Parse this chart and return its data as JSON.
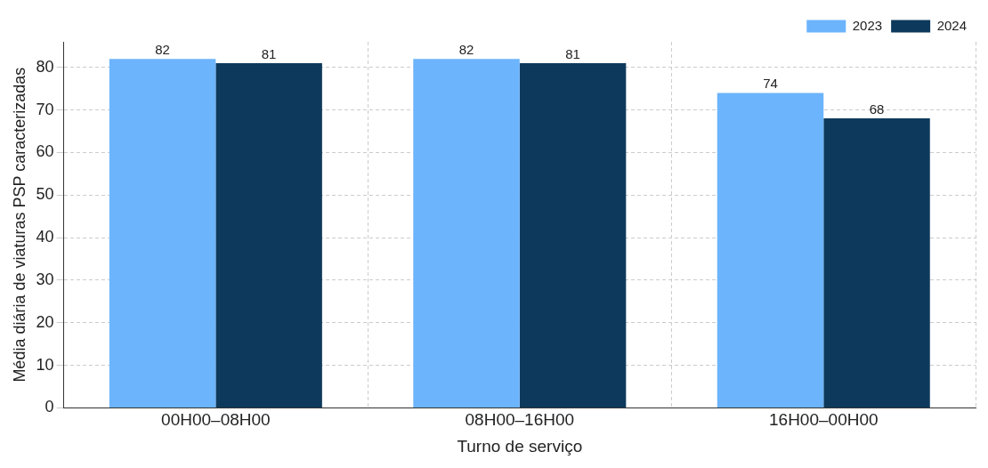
{
  "chart_data": {
    "type": "bar",
    "xlabel": "Turno de serviço",
    "ylabel": "Média diária de viaturas PSP caracterizadas",
    "categories": [
      "00H00–08H00",
      "08H00–16H00",
      "16H00–00H00"
    ],
    "series": [
      {
        "name": "2023",
        "color": "#6cb4fc",
        "values": [
          82,
          82,
          74
        ]
      },
      {
        "name": "2024",
        "color": "#0d3a5c",
        "values": [
          81,
          81,
          68
        ]
      }
    ],
    "ylim": [
      0,
      86
    ],
    "yticks": [
      0,
      10,
      20,
      30,
      40,
      50,
      60,
      70,
      80
    ],
    "grid": true,
    "legend": "top right",
    "data_labels": true
  }
}
